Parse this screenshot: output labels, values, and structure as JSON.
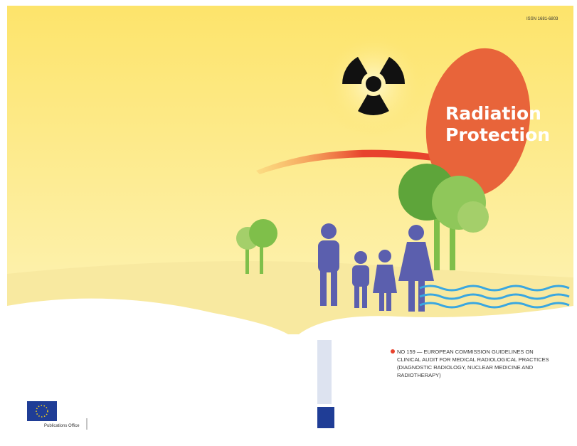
{
  "issn": "ISSN 1681-6803",
  "title": [
    "Radiation",
    "Protection"
  ],
  "description": [
    "NO 159 — EUROPEAN COMMISSION GUIDELINES ON",
    "CLINICAL AUDIT FOR MEDICAL RADIOLOGICAL PRACTICES",
    "(DIAGNOSTIC RADIOLOGY, NUCLEAR MEDICINE AND",
    "RADIOTHERAPY)"
  ],
  "publisher": "Publications Office"
}
